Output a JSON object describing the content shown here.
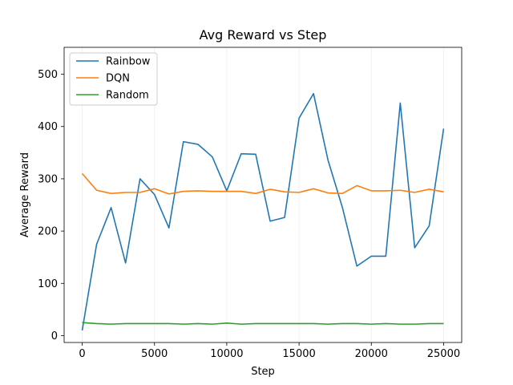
{
  "chart_data": {
    "type": "line",
    "title": "Avg Reward vs Step",
    "xlabel": "Step",
    "ylabel": "Average Reward",
    "xlim": [
      -1250,
      26250
    ],
    "ylim": [
      -13.1,
      551.5
    ],
    "xticks": [
      0,
      5000,
      10000,
      15000,
      20000,
      25000
    ],
    "yticks": [
      0,
      100,
      200,
      300,
      400,
      500
    ],
    "grid": "x-only-faint",
    "legend_position": "top-left",
    "x": [
      0,
      1000,
      2000,
      3000,
      4000,
      5000,
      6000,
      7000,
      8000,
      9000,
      10000,
      11000,
      12000,
      13000,
      14000,
      15000,
      16000,
      17000,
      18000,
      19000,
      20000,
      21000,
      22000,
      23000,
      24000,
      25000
    ],
    "series": [
      {
        "name": "Rainbow",
        "color": "#1f77b4",
        "values": [
          10,
          175,
          245,
          139,
          300,
          270,
          206,
          371,
          366,
          342,
          277,
          348,
          347,
          219,
          226,
          416,
          463,
          336,
          245,
          133,
          152,
          152,
          445,
          168,
          210,
          396
        ]
      },
      {
        "name": "DQN",
        "color": "#ff7f0e",
        "values": [
          310,
          278,
          272,
          274,
          274,
          281,
          271,
          276,
          277,
          276,
          276,
          276,
          272,
          280,
          275,
          274,
          281,
          273,
          272,
          287,
          277,
          277,
          278,
          274,
          280,
          275
        ]
      },
      {
        "name": "Random",
        "color": "#2ca02c",
        "values": [
          25,
          23,
          22,
          23,
          23,
          23,
          23,
          22,
          23,
          22,
          24,
          22,
          23,
          23,
          23,
          23,
          23,
          22,
          23,
          23,
          22,
          23,
          22,
          22,
          23,
          23
        ]
      }
    ]
  }
}
